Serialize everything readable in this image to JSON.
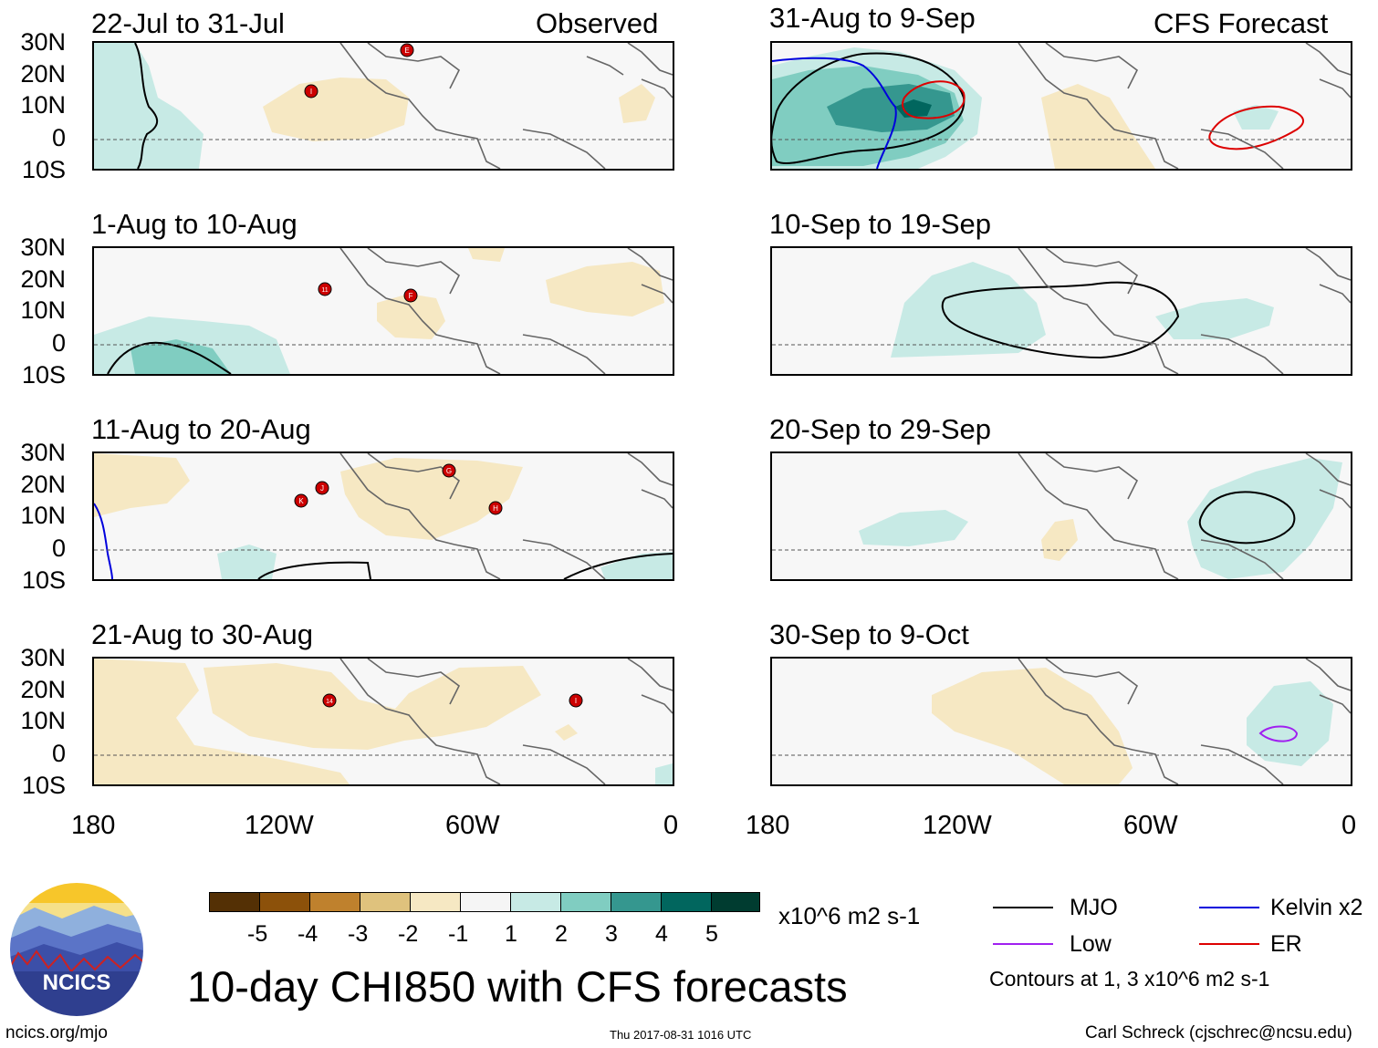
{
  "main_title": "10-day CHI850 with CFS forecasts",
  "column_headers": {
    "left": "Observed",
    "right": "CFS Forecast"
  },
  "panels": {
    "left": [
      {
        "title": "22-Jul to 31-Jul"
      },
      {
        "title": "1-Aug to 10-Aug"
      },
      {
        "title": "11-Aug to 20-Aug"
      },
      {
        "title": "21-Aug to 30-Aug"
      }
    ],
    "right": [
      {
        "title": "31-Aug to 9-Sep"
      },
      {
        "title": "10-Sep to 19-Sep"
      },
      {
        "title": "20-Sep to 29-Sep"
      },
      {
        "title": "30-Sep to 9-Oct"
      }
    ]
  },
  "lat_ticks": [
    "30N",
    "20N",
    "10N",
    "0",
    "10S"
  ],
  "lon_ticks": [
    "180",
    "120W",
    "60W",
    "0"
  ],
  "storms": {
    "p1": [
      "E",
      "I"
    ],
    "p2": [
      "11",
      "F"
    ],
    "p3": [
      "G",
      "J",
      "K",
      "H"
    ],
    "p4": [
      "14",
      "I"
    ]
  },
  "colorbar": {
    "ticks": [
      "-5",
      "-4",
      "-3",
      "-2",
      "-1",
      "1",
      "2",
      "3",
      "4",
      "5"
    ],
    "colors": [
      "#543005",
      "#8c510a",
      "#bf812d",
      "#dfc27d",
      "#f6e8c3",
      "#f5f5f5",
      "#c7eae5",
      "#80cdc1",
      "#35978f",
      "#01665e",
      "#003c30"
    ],
    "units": "x10^6 m2 s-1"
  },
  "legend": {
    "items": [
      {
        "label": "MJO",
        "color": "#000000"
      },
      {
        "label": "Kelvin x2",
        "color": "#0000dd"
      },
      {
        "label": "Low",
        "color": "#a020f0"
      },
      {
        "label": "ER",
        "color": "#dd0000"
      }
    ],
    "note": "Contours at 1, 3 x10^6 m2 s-1"
  },
  "logo": {
    "text": "NCICS"
  },
  "footer": {
    "url": "ncics.org/mjo",
    "timestamp": "Thu 2017-08-31 1016 UTC",
    "credit": "Carl Schreck (cjschrec@ncsu.edu)"
  }
}
